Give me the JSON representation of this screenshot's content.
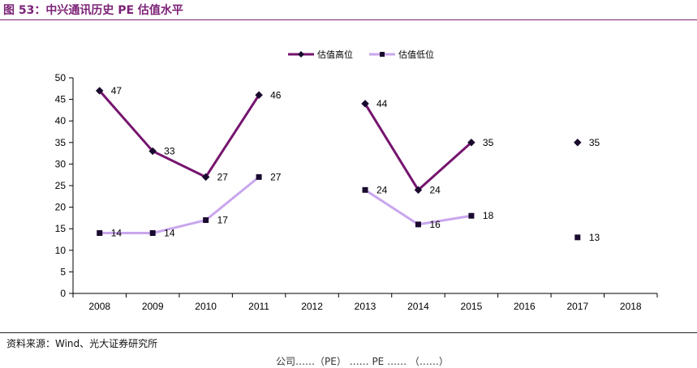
{
  "figure": {
    "title": "图 53：中兴通讯历史 PE 估值水平",
    "source": "资料来源：Wind、光大证券研究所",
    "cutoff_text": "公司……（PE） …… PE …… （……）"
  },
  "colors": {
    "high": "#76146f",
    "low": "#c9a6ee",
    "title": "#7b2277"
  },
  "chart_data": {
    "type": "line",
    "title": "",
    "xlabel": "",
    "ylabel": "",
    "categories": [
      "2008",
      "2009",
      "2010",
      "2011",
      "2012",
      "2013",
      "2014",
      "2015",
      "2016",
      "2017",
      "2018"
    ],
    "ylim": [
      0,
      50
    ],
    "yticks": [
      0,
      5,
      10,
      15,
      20,
      25,
      30,
      35,
      40,
      45,
      50
    ],
    "grid": false,
    "legend_position": "top-center",
    "series": [
      {
        "name": "估值高位",
        "marker": "diamond",
        "values": [
          47,
          33,
          27,
          46,
          null,
          44,
          24,
          35,
          null,
          35,
          null
        ]
      },
      {
        "name": "估值低位",
        "marker": "square",
        "values": [
          14,
          14,
          17,
          27,
          null,
          24,
          16,
          18,
          null,
          13,
          null
        ]
      }
    ]
  }
}
